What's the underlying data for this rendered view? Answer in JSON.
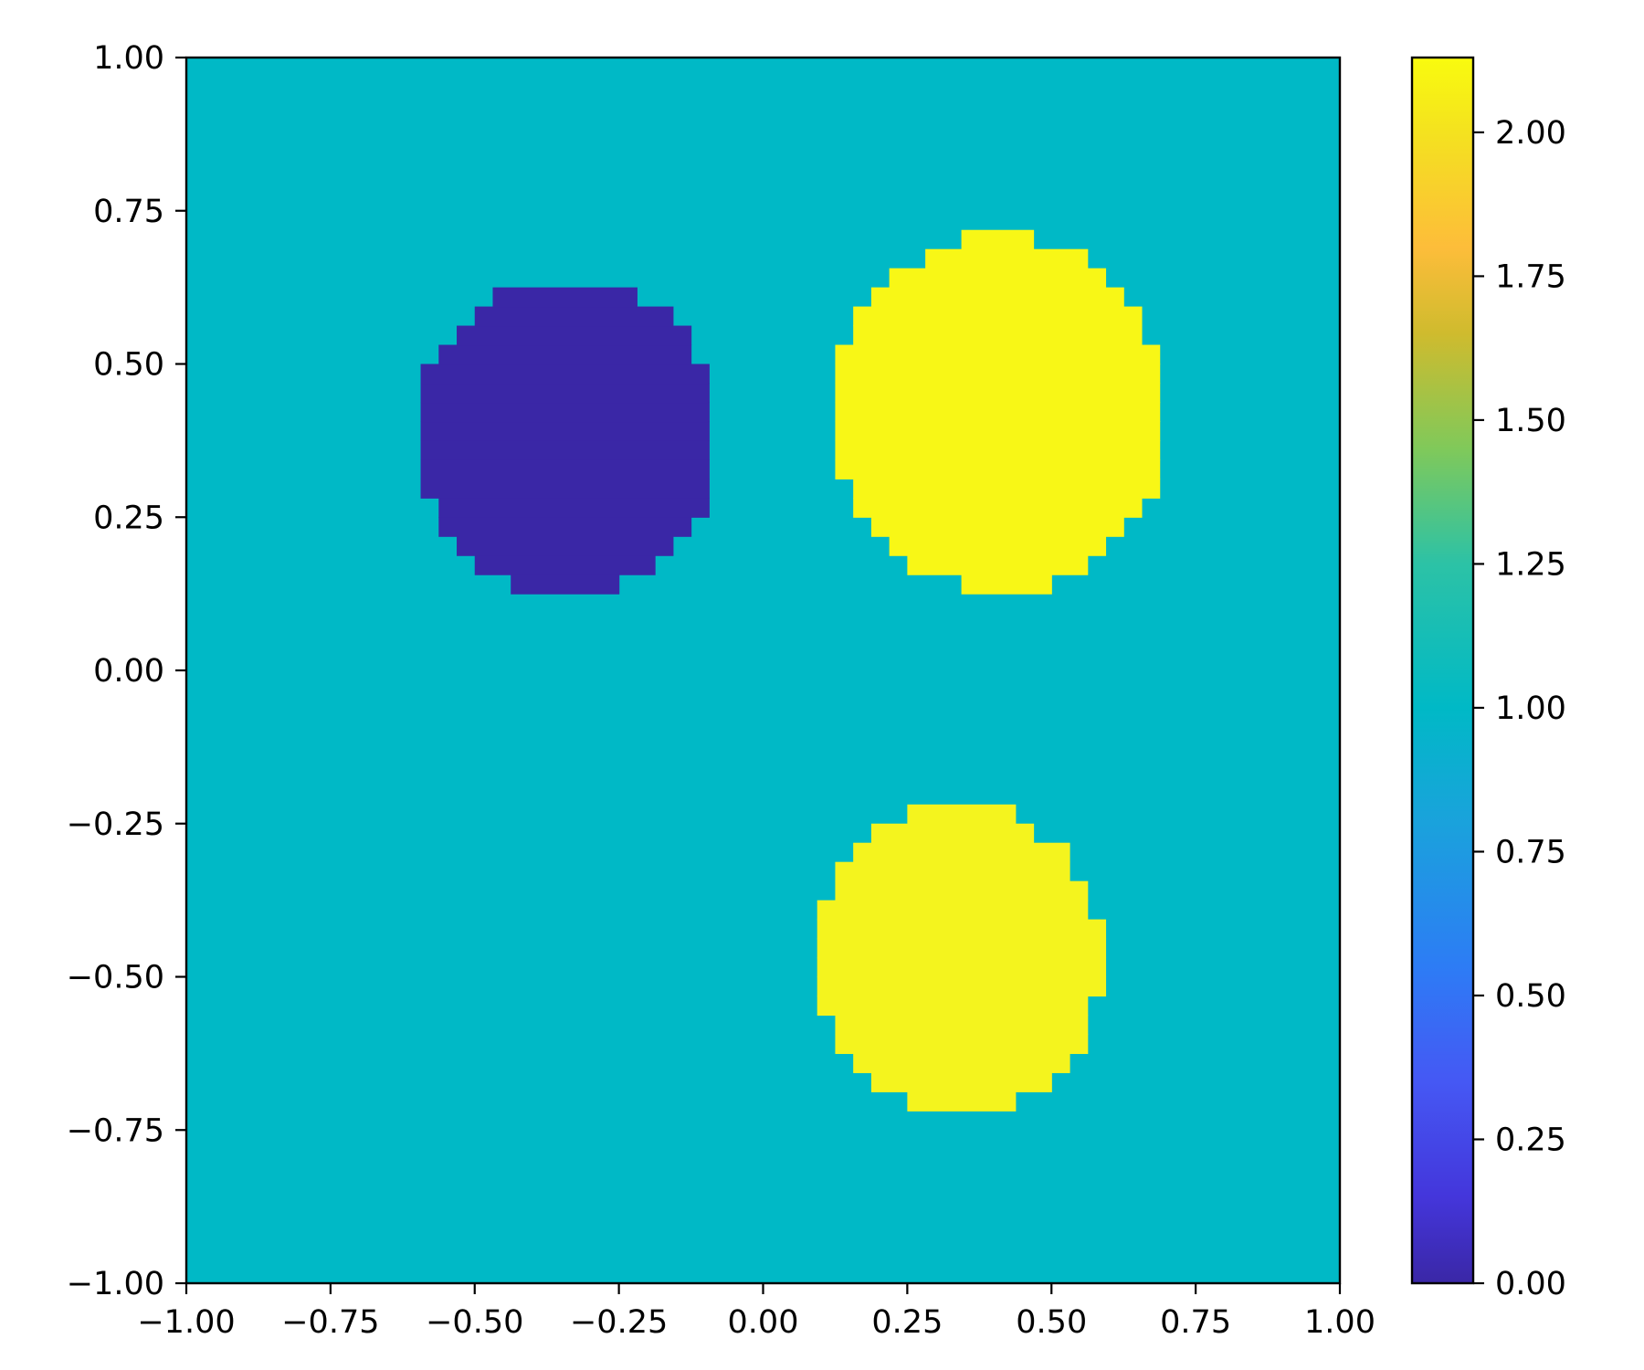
{
  "chart_data": {
    "type": "heatmap",
    "title": "",
    "xlabel": "",
    "ylabel": "",
    "xlim": [
      -1.0,
      1.0
    ],
    "ylim": [
      -1.0,
      1.0
    ],
    "grid": false,
    "x_ticks": [
      "−1.00",
      "−0.75",
      "−0.50",
      "−0.25",
      "0.00",
      "0.25",
      "0.50",
      "0.75",
      "1.00"
    ],
    "y_ticks": [
      "−1.00",
      "−0.75",
      "−0.50",
      "−0.25",
      "0.00",
      "0.25",
      "0.50",
      "0.75",
      "1.00"
    ],
    "x_tick_values": [
      -1.0,
      -0.75,
      -0.5,
      -0.25,
      0.0,
      0.25,
      0.5,
      0.75,
      1.0
    ],
    "y_tick_values": [
      -1.0,
      -0.75,
      -0.5,
      -0.25,
      0.0,
      0.25,
      0.5,
      0.75,
      1.0
    ],
    "grid_resolution": 64,
    "background_value": 1.0,
    "regions": [
      {
        "shape": "disk",
        "center_x": -0.34,
        "center_y": 0.38,
        "radius": 0.26,
        "value": 0.0,
        "color": "#3a27a6"
      },
      {
        "shape": "disk",
        "center_x": 0.41,
        "center_y": 0.42,
        "radius": 0.29,
        "value": 2.13,
        "color": "#f8f716"
      },
      {
        "shape": "disk",
        "center_x": 0.34,
        "center_y": -0.47,
        "radius": 0.25,
        "value": 2.08,
        "color": "#f4f41e"
      }
    ],
    "colorbar": {
      "vmin": 0.0,
      "vmax": 2.13,
      "ticks": [
        "0.00",
        "0.25",
        "0.50",
        "0.75",
        "1.00",
        "1.25",
        "1.50",
        "1.75",
        "2.00"
      ],
      "tick_values": [
        0.0,
        0.25,
        0.5,
        0.75,
        1.0,
        1.25,
        1.5,
        1.75,
        2.0
      ],
      "colormap": [
        {
          "value": 0.0,
          "color": "#3a27a6"
        },
        {
          "value": 0.15,
          "color": "#4436db"
        },
        {
          "value": 0.35,
          "color": "#4558f4"
        },
        {
          "value": 0.55,
          "color": "#2d7cf5"
        },
        {
          "value": 0.8,
          "color": "#1aa2dc"
        },
        {
          "value": 1.0,
          "color": "#00b9c6"
        },
        {
          "value": 1.25,
          "color": "#2cc2a6"
        },
        {
          "value": 1.45,
          "color": "#80c95a"
        },
        {
          "value": 1.65,
          "color": "#cfbb2e"
        },
        {
          "value": 1.8,
          "color": "#fdbd3a"
        },
        {
          "value": 2.0,
          "color": "#f4e21f"
        },
        {
          "value": 2.13,
          "color": "#f9fb0e"
        }
      ]
    },
    "background_color": "#00b9c6"
  }
}
